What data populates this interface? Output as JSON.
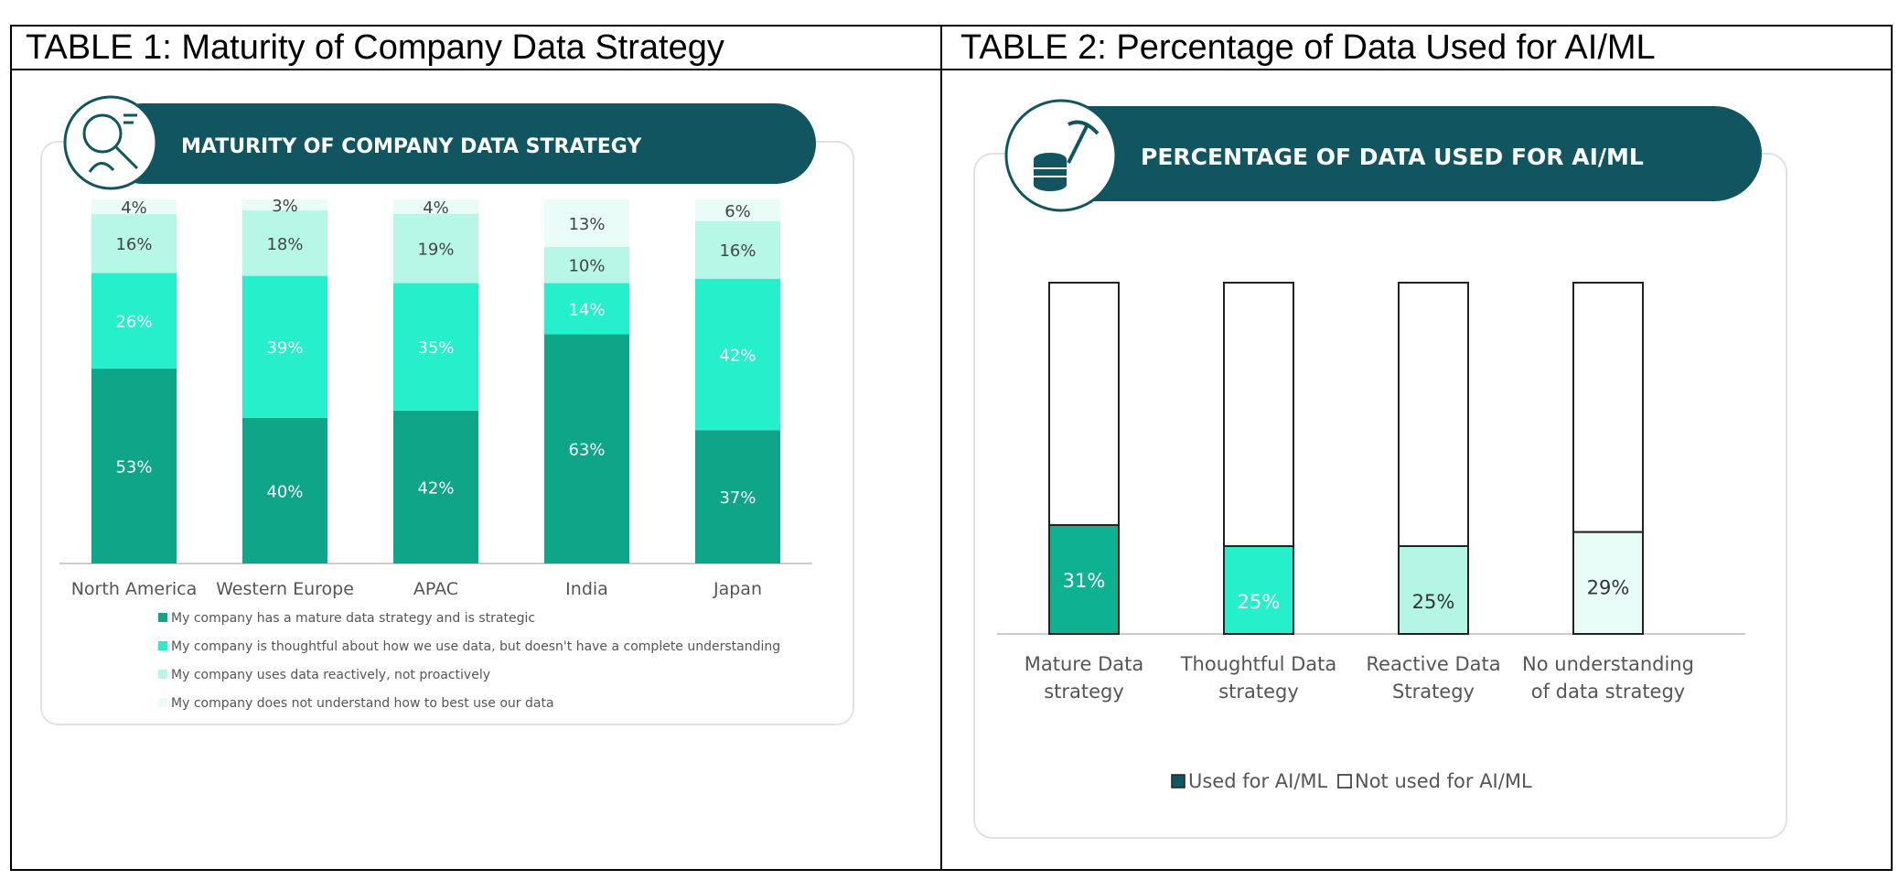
{
  "tables": [
    {
      "title": "TABLE 1: Maturity of Company Data Strategy"
    },
    {
      "title": "TABLE 2: Percentage of Data Used for AI/ML"
    }
  ],
  "chart_data": [
    {
      "type": "bar",
      "stacked": true,
      "title": "MATURITY OF COMPANY DATA STRATEGY",
      "icon": "data-analyst-magnifier-icon",
      "categories": [
        "North America",
        "Western Europe",
        "APAC",
        "India",
        "Japan"
      ],
      "series": [
        {
          "name": "My company has a mature data strategy and is strategic",
          "color": "#0ea589",
          "values": [
            53,
            40,
            42,
            63,
            37
          ]
        },
        {
          "name": "My company is thoughtful about how we use data, but doesn't have a complete understanding",
          "color": "#26f0cc",
          "values": [
            26,
            39,
            35,
            14,
            42
          ]
        },
        {
          "name": "My company uses data reactively, not proactively",
          "color": "#b7f7e8",
          "values": [
            16,
            18,
            19,
            10,
            16
          ]
        },
        {
          "name": "My company does not understand how to best use our data",
          "color": "#e9fcf7",
          "values": [
            4,
            3,
            4,
            13,
            6
          ]
        }
      ],
      "data_labels": [
        "53%",
        "40%",
        "42%",
        "63%",
        "37%",
        "26%",
        "39%",
        "35%",
        "14%",
        "42%",
        "16%",
        "18%",
        "19%",
        "10%",
        "16%",
        "4%",
        "3%",
        "4%",
        "13%",
        "6%"
      ],
      "legend_position": "bottom",
      "grid": false
    },
    {
      "type": "bar",
      "stacked": true,
      "title": "PERCENTAGE OF DATA USED FOR AI/ML",
      "icon": "database-pickaxe-icon",
      "categories": [
        "Mature Data strategy",
        "Thoughtful Data strategy",
        "Reactive Data Strategy",
        "No understanding of data strategy"
      ],
      "category_lines": [
        [
          "Mature Data",
          "strategy"
        ],
        [
          "Thoughtful Data",
          "strategy"
        ],
        [
          "Reactive Data",
          "Strategy"
        ],
        [
          "No understanding",
          "of data strategy"
        ]
      ],
      "used_values": [
        31,
        25,
        25,
        29
      ],
      "used_labels": [
        "31%",
        "25%",
        "25%",
        "29%"
      ],
      "used_colors": [
        "#0fb193",
        "#26f0cc",
        "#b3f6e6",
        "#e9fdf8"
      ],
      "legend": [
        "Used for AI/ML",
        "Not used for AI/ML"
      ],
      "legend_colors": [
        "#10555f",
        "#ffffff"
      ],
      "ylim": [
        0,
        100
      ],
      "legend_position": "bottom",
      "grid": false
    }
  ],
  "colors": {
    "banner": "#10555f",
    "text_gray": "#555555",
    "panel_border": "#e0e0e0",
    "baseline": "#cccccc"
  }
}
